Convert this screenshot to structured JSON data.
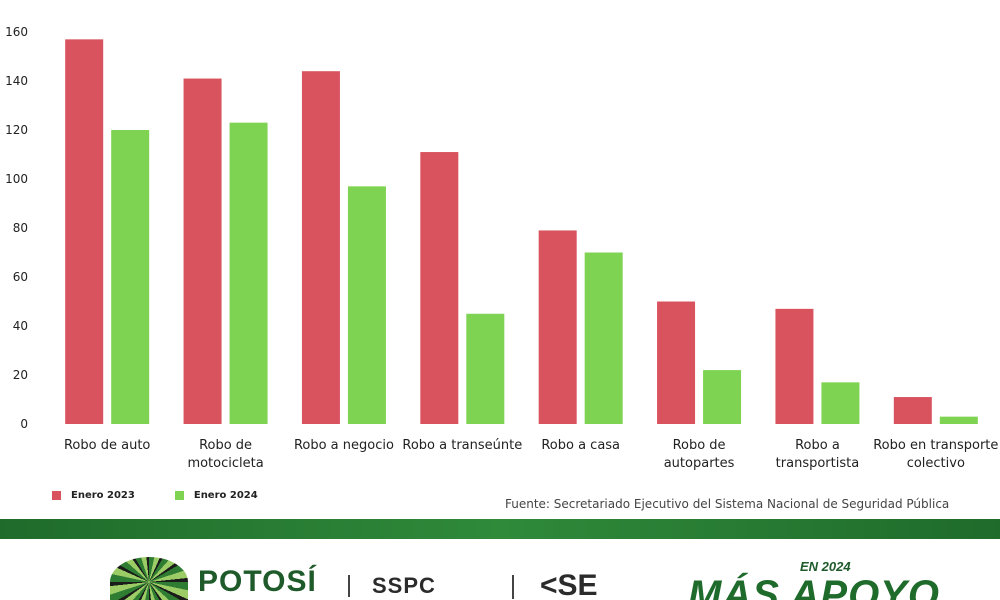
{
  "chart_data": {
    "type": "bar",
    "categories": [
      [
        "Robo de auto"
      ],
      [
        "Robo de",
        "motocicleta"
      ],
      [
        "Robo a negocio"
      ],
      [
        "Robo a transeúnte"
      ],
      [
        "Robo a casa"
      ],
      [
        "Robo de",
        "autopartes"
      ],
      [
        "Robo a",
        "transportista"
      ],
      [
        "Robo en transporte",
        "colectivo"
      ]
    ],
    "series": [
      {
        "name": "Enero 2023",
        "color": "#d9535f",
        "values": [
          157,
          141,
          144,
          111,
          79,
          50,
          47,
          11
        ]
      },
      {
        "name": "Enero 2024",
        "color": "#7fd352",
        "values": [
          120,
          123,
          97,
          45,
          70,
          22,
          17,
          3
        ]
      }
    ],
    "ylim": [
      0,
      160
    ],
    "yticks": [
      "0",
      "20",
      "40",
      "60",
      "80",
      "100",
      "120",
      "140",
      "160"
    ],
    "grid": false,
    "legend_position": "bottom-left"
  },
  "source": "Fuente: Secretariado Ejecutivo del Sistema Nacional de Seguridad Pública",
  "footer": {
    "potosi": "POTOSÍ",
    "sspc": "SSPC",
    "se": "<SE",
    "en_2024": "EN 2024",
    "mas_apoyo": "MÁS APOYO"
  }
}
